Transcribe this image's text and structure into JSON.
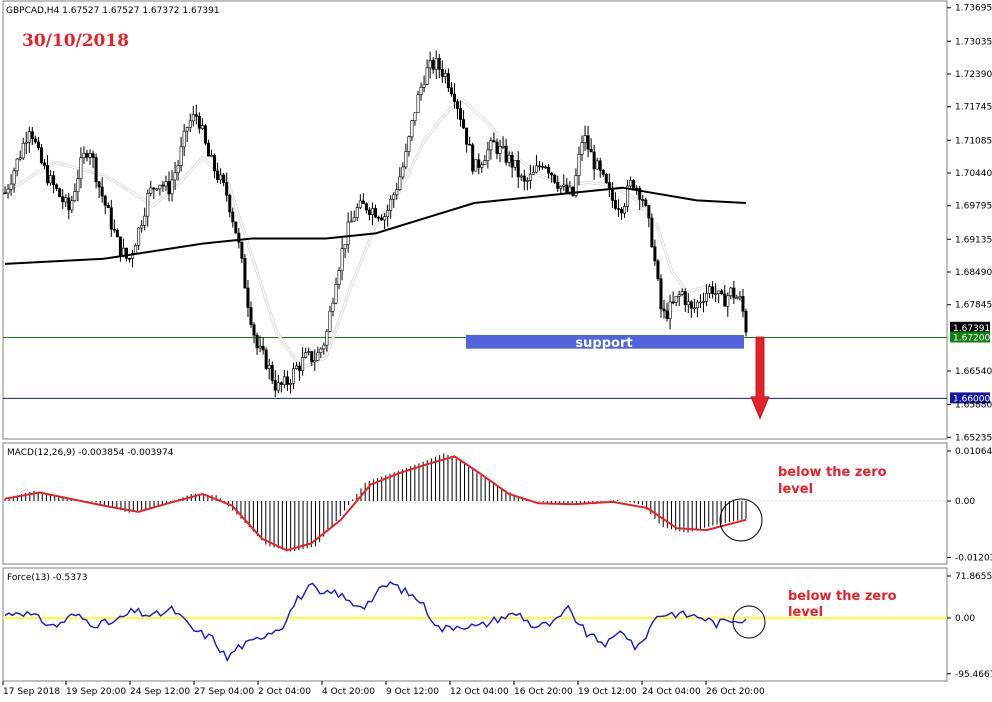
{
  "header": {
    "main": "GBPCAD,H4  1.67527 1.67527 1.67372 1.67391",
    "macd": "MACD(12,26,9) -0.003854 -0.003974",
    "force": "Force(13) -0.5373"
  },
  "annotations": {
    "date": "30/10/2018",
    "support": "support",
    "macd_note_1": "below the zero",
    "macd_note_2": "level",
    "force_note_1": "below the zero",
    "force_note_2": "level"
  },
  "colors": {
    "ma_fast": "#ffffff",
    "ma_slow": "#000000",
    "macd_signal": "#e8202a",
    "force_line": "#1616c8",
    "force_zero": "#ffff33",
    "support_box": "#5064dc",
    "arrow": "#e8202a",
    "level_green": "#108010",
    "level_blue": "#1616a0"
  },
  "chart_data": [
    {
      "type": "candlestick",
      "symbol": "GBPCAD",
      "timeframe": "H4",
      "y_range": [
        1.6525,
        1.7375
      ],
      "y_ticks": [
        "1.73695",
        "1.73035",
        "1.72390",
        "1.71745",
        "1.71085",
        "1.70440",
        "1.69795",
        "1.69135",
        "1.68490",
        "1.67845",
        "1.67391",
        "1.67200",
        "1.66540",
        "1.66000",
        "1.65880",
        "1.65235"
      ],
      "levels": [
        {
          "label": "1.67200",
          "value": 1.672,
          "color": "green"
        },
        {
          "label": "1.66000",
          "value": 1.66,
          "color": "blue"
        }
      ],
      "current_price_label": "1.67391",
      "current_price": 1.67391,
      "support_zone": [
        1.6698,
        1.6725
      ],
      "x_labels": [
        "17 Sep 2018",
        "19 Sep 20:00",
        "24 Sep 12:00",
        "27 Sep 04:00",
        "2 Oct 04:00",
        "4 Oct 20:00",
        "9 Oct 12:00",
        "12 Oct 04:00",
        "16 Oct 20:00",
        "19 Oct 12:00",
        "24 Oct 04:00",
        "26 Oct 20:00"
      ],
      "close_path": [
        {
          "x": 0,
          "y": 1.7005
        },
        {
          "x": 6,
          "y": 1.708
        },
        {
          "x": 10,
          "y": 1.714
        },
        {
          "x": 14,
          "y": 1.707
        },
        {
          "x": 18,
          "y": 1.703
        },
        {
          "x": 22,
          "y": 1.7
        },
        {
          "x": 26,
          "y": 1.697
        },
        {
          "x": 30,
          "y": 1.705
        },
        {
          "x": 34,
          "y": 1.71
        },
        {
          "x": 38,
          "y": 1.702
        },
        {
          "x": 42,
          "y": 1.696
        },
        {
          "x": 46,
          "y": 1.69
        },
        {
          "x": 50,
          "y": 1.687
        },
        {
          "x": 54,
          "y": 1.693
        },
        {
          "x": 58,
          "y": 1.7
        },
        {
          "x": 62,
          "y": 1.703
        },
        {
          "x": 66,
          "y": 1.701
        },
        {
          "x": 70,
          "y": 1.706
        },
        {
          "x": 74,
          "y": 1.714
        },
        {
          "x": 78,
          "y": 1.716
        },
        {
          "x": 82,
          "y": 1.708
        },
        {
          "x": 86,
          "y": 1.704
        },
        {
          "x": 90,
          "y": 1.7
        },
        {
          "x": 94,
          "y": 1.692
        },
        {
          "x": 98,
          "y": 1.68
        },
        {
          "x": 102,
          "y": 1.67
        },
        {
          "x": 106,
          "y": 1.667
        },
        {
          "x": 110,
          "y": 1.662
        },
        {
          "x": 114,
          "y": 1.663
        },
        {
          "x": 118,
          "y": 1.666
        },
        {
          "x": 122,
          "y": 1.668
        },
        {
          "x": 126,
          "y": 1.668
        },
        {
          "x": 130,
          "y": 1.672
        },
        {
          "x": 134,
          "y": 1.684
        },
        {
          "x": 138,
          "y": 1.692
        },
        {
          "x": 142,
          "y": 1.697
        },
        {
          "x": 146,
          "y": 1.698
        },
        {
          "x": 150,
          "y": 1.697
        },
        {
          "x": 154,
          "y": 1.696
        },
        {
          "x": 158,
          "y": 1.701
        },
        {
          "x": 162,
          "y": 1.707
        },
        {
          "x": 166,
          "y": 1.717
        },
        {
          "x": 170,
          "y": 1.724
        },
        {
          "x": 174,
          "y": 1.726
        },
        {
          "x": 178,
          "y": 1.724
        },
        {
          "x": 182,
          "y": 1.72
        },
        {
          "x": 186,
          "y": 1.713
        },
        {
          "x": 190,
          "y": 1.705
        },
        {
          "x": 194,
          "y": 1.708
        },
        {
          "x": 198,
          "y": 1.71
        },
        {
          "x": 202,
          "y": 1.708
        },
        {
          "x": 206,
          "y": 1.706
        },
        {
          "x": 210,
          "y": 1.702
        },
        {
          "x": 214,
          "y": 1.704
        },
        {
          "x": 218,
          "y": 1.707
        },
        {
          "x": 222,
          "y": 1.704
        },
        {
          "x": 226,
          "y": 1.701
        },
        {
          "x": 230,
          "y": 1.7
        },
        {
          "x": 234,
          "y": 1.712
        },
        {
          "x": 238,
          "y": 1.707
        },
        {
          "x": 242,
          "y": 1.703
        },
        {
          "x": 246,
          "y": 1.699
        },
        {
          "x": 250,
          "y": 1.698
        },
        {
          "x": 254,
          "y": 1.703
        },
        {
          "x": 258,
          "y": 1.7
        },
        {
          "x": 262,
          "y": 1.691
        },
        {
          "x": 266,
          "y": 1.676
        },
        {
          "x": 270,
          "y": 1.678
        },
        {
          "x": 274,
          "y": 1.681
        },
        {
          "x": 278,
          "y": 1.677
        },
        {
          "x": 282,
          "y": 1.68
        },
        {
          "x": 286,
          "y": 1.682
        },
        {
          "x": 290,
          "y": 1.679
        },
        {
          "x": 294,
          "y": 1.681
        },
        {
          "x": 298,
          "y": 1.679
        },
        {
          "x": 300,
          "y": 1.6739
        }
      ],
      "ma_fast_path": [
        {
          "x": 0,
          "y": 1.7005
        },
        {
          "x": 20,
          "y": 1.7065
        },
        {
          "x": 40,
          "y": 1.704
        },
        {
          "x": 60,
          "y": 1.698
        },
        {
          "x": 70,
          "y": 1.702
        },
        {
          "x": 80,
          "y": 1.7075
        },
        {
          "x": 90,
          "y": 1.703
        },
        {
          "x": 100,
          "y": 1.688
        },
        {
          "x": 110,
          "y": 1.673
        },
        {
          "x": 120,
          "y": 1.666
        },
        {
          "x": 130,
          "y": 1.668
        },
        {
          "x": 140,
          "y": 1.682
        },
        {
          "x": 150,
          "y": 1.694
        },
        {
          "x": 160,
          "y": 1.701
        },
        {
          "x": 170,
          "y": 1.711
        },
        {
          "x": 180,
          "y": 1.717
        },
        {
          "x": 186,
          "y": 1.7185
        },
        {
          "x": 196,
          "y": 1.714
        },
        {
          "x": 206,
          "y": 1.708
        },
        {
          "x": 216,
          "y": 1.704
        },
        {
          "x": 226,
          "y": 1.702
        },
        {
          "x": 236,
          "y": 1.7025
        },
        {
          "x": 246,
          "y": 1.702
        },
        {
          "x": 256,
          "y": 1.699
        },
        {
          "x": 264,
          "y": 1.694
        },
        {
          "x": 270,
          "y": 1.685
        },
        {
          "x": 276,
          "y": 1.681
        },
        {
          "x": 284,
          "y": 1.682
        },
        {
          "x": 292,
          "y": 1.681
        },
        {
          "x": 300,
          "y": 1.679
        }
      ],
      "ma_slow_path": [
        {
          "x": 0,
          "y": 1.6865
        },
        {
          "x": 40,
          "y": 1.6875
        },
        {
          "x": 80,
          "y": 1.6905
        },
        {
          "x": 100,
          "y": 1.6915
        },
        {
          "x": 130,
          "y": 1.6915
        },
        {
          "x": 150,
          "y": 1.6925
        },
        {
          "x": 170,
          "y": 1.6955
        },
        {
          "x": 190,
          "y": 1.6985
        },
        {
          "x": 210,
          "y": 1.6995
        },
        {
          "x": 230,
          "y": 1.7005
        },
        {
          "x": 250,
          "y": 1.7015
        },
        {
          "x": 262,
          "y": 1.7005
        },
        {
          "x": 280,
          "y": 1.699
        },
        {
          "x": 300,
          "y": 1.6985
        }
      ]
    },
    {
      "type": "histogram+line",
      "indicator": "MACD(12,26,9)",
      "y_ticks": [
        "0.010644",
        "0.00",
        "-0.012036"
      ],
      "y_range": [
        -0.012036,
        0.010644
      ],
      "histogram": [
        {
          "x": 0,
          "y": 0.0005
        },
        {
          "x": 12,
          "y": 0.0022
        },
        {
          "x": 24,
          "y": 0.0006
        },
        {
          "x": 36,
          "y": -0.0002
        },
        {
          "x": 50,
          "y": -0.0025
        },
        {
          "x": 62,
          "y": -0.0012
        },
        {
          "x": 76,
          "y": 0.0016
        },
        {
          "x": 86,
          "y": 0.0012
        },
        {
          "x": 96,
          "y": -0.004
        },
        {
          "x": 106,
          "y": -0.0095
        },
        {
          "x": 116,
          "y": -0.0108
        },
        {
          "x": 126,
          "y": -0.0096
        },
        {
          "x": 136,
          "y": -0.003
        },
        {
          "x": 146,
          "y": 0.004
        },
        {
          "x": 158,
          "y": 0.0062
        },
        {
          "x": 170,
          "y": 0.0085
        },
        {
          "x": 178,
          "y": 0.0102
        },
        {
          "x": 186,
          "y": 0.008
        },
        {
          "x": 198,
          "y": 0.0035
        },
        {
          "x": 210,
          "y": 0.0004
        },
        {
          "x": 222,
          "y": -0.0006
        },
        {
          "x": 236,
          "y": -0.0004
        },
        {
          "x": 248,
          "y": 0.0002
        },
        {
          "x": 258,
          "y": -0.0008
        },
        {
          "x": 266,
          "y": -0.0055
        },
        {
          "x": 276,
          "y": -0.0068
        },
        {
          "x": 288,
          "y": -0.005
        },
        {
          "x": 300,
          "y": -0.0038
        }
      ],
      "signal": [
        {
          "x": 0,
          "y": 0.0005
        },
        {
          "x": 14,
          "y": 0.0018
        },
        {
          "x": 28,
          "y": 0.0003
        },
        {
          "x": 42,
          "y": -0.0012
        },
        {
          "x": 54,
          "y": -0.0023
        },
        {
          "x": 66,
          "y": -0.0005
        },
        {
          "x": 80,
          "y": 0.0015
        },
        {
          "x": 92,
          "y": -0.001
        },
        {
          "x": 104,
          "y": -0.008
        },
        {
          "x": 114,
          "y": -0.0105
        },
        {
          "x": 124,
          "y": -0.009
        },
        {
          "x": 136,
          "y": -0.004
        },
        {
          "x": 148,
          "y": 0.0035
        },
        {
          "x": 160,
          "y": 0.006
        },
        {
          "x": 172,
          "y": 0.008
        },
        {
          "x": 182,
          "y": 0.0095
        },
        {
          "x": 192,
          "y": 0.006
        },
        {
          "x": 204,
          "y": 0.0015
        },
        {
          "x": 216,
          "y": -0.0005
        },
        {
          "x": 230,
          "y": -0.0007
        },
        {
          "x": 246,
          "y": -0.0002
        },
        {
          "x": 260,
          "y": -0.0015
        },
        {
          "x": 272,
          "y": -0.0058
        },
        {
          "x": 284,
          "y": -0.0062
        },
        {
          "x": 300,
          "y": -0.004
        }
      ]
    },
    {
      "type": "line",
      "indicator": "Force(13)",
      "y_ticks": [
        "71.8655",
        "0.00",
        "-95.4667"
      ],
      "y_range": [
        -95.4667,
        71.8655
      ],
      "line": [
        {
          "x": 0,
          "y": 5
        },
        {
          "x": 6,
          "y": 12
        },
        {
          "x": 12,
          "y": 2
        },
        {
          "x": 20,
          "y": -15
        },
        {
          "x": 28,
          "y": 6
        },
        {
          "x": 36,
          "y": -10
        },
        {
          "x": 44,
          "y": -8
        },
        {
          "x": 52,
          "y": 12
        },
        {
          "x": 60,
          "y": 3
        },
        {
          "x": 68,
          "y": 15
        },
        {
          "x": 76,
          "y": -20
        },
        {
          "x": 84,
          "y": -35
        },
        {
          "x": 90,
          "y": -70
        },
        {
          "x": 94,
          "y": -50
        },
        {
          "x": 100,
          "y": -42
        },
        {
          "x": 106,
          "y": -25
        },
        {
          "x": 112,
          "y": -15
        },
        {
          "x": 118,
          "y": 30
        },
        {
          "x": 124,
          "y": 55
        },
        {
          "x": 128,
          "y": 38
        },
        {
          "x": 134,
          "y": 45
        },
        {
          "x": 140,
          "y": 25
        },
        {
          "x": 146,
          "y": 22
        },
        {
          "x": 152,
          "y": 48
        },
        {
          "x": 156,
          "y": 60
        },
        {
          "x": 162,
          "y": 45
        },
        {
          "x": 168,
          "y": 30
        },
        {
          "x": 176,
          "y": -20
        },
        {
          "x": 184,
          "y": -12
        },
        {
          "x": 192,
          "y": -15
        },
        {
          "x": 200,
          "y": 0
        },
        {
          "x": 208,
          "y": 8
        },
        {
          "x": 214,
          "y": -15
        },
        {
          "x": 222,
          "y": -10
        },
        {
          "x": 228,
          "y": 15
        },
        {
          "x": 236,
          "y": -30
        },
        {
          "x": 244,
          "y": -45
        },
        {
          "x": 250,
          "y": -20
        },
        {
          "x": 256,
          "y": -55
        },
        {
          "x": 264,
          "y": 5
        },
        {
          "x": 270,
          "y": 8
        },
        {
          "x": 276,
          "y": 5
        },
        {
          "x": 282,
          "y": 2
        },
        {
          "x": 288,
          "y": -10
        },
        {
          "x": 294,
          "y": -3
        },
        {
          "x": 300,
          "y": -0.5
        }
      ]
    }
  ]
}
